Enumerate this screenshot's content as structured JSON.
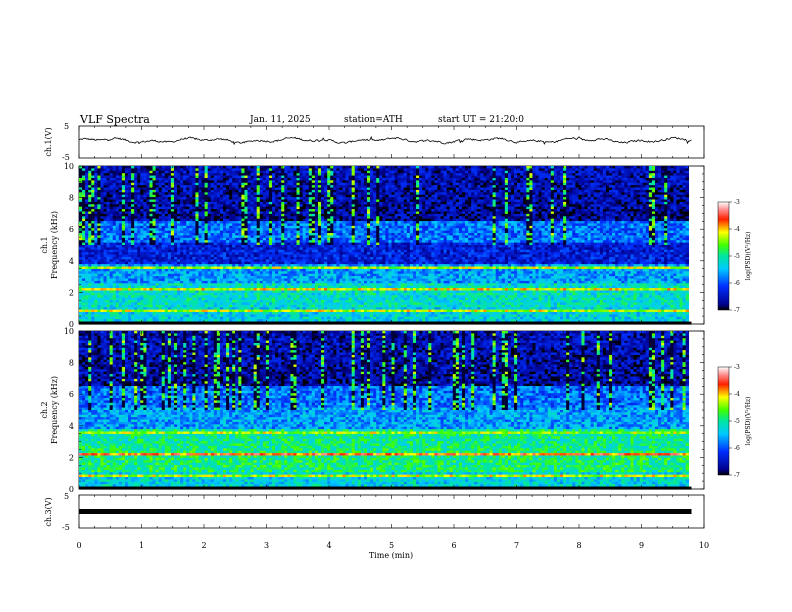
{
  "header": {
    "title": "VLF Spectra",
    "date": "Jan. 11, 2025",
    "station": "station=ATH",
    "start": "start UT = 21:20:0"
  },
  "chart_data": [
    {
      "type": "line",
      "name": "ch1-waveform",
      "ylabel": "ch.1(V)",
      "ylim": [
        -5,
        5
      ],
      "yticks": [
        "5",
        "-5"
      ],
      "xlim": [
        0,
        10
      ],
      "trace_level": 0.5
    },
    {
      "type": "heatmap",
      "name": "ch1-spectrogram",
      "ylabel_line1": "ch.1",
      "ylabel_line2": "Frequency (kHz)",
      "ylim": [
        0,
        10
      ],
      "yticks": [
        "0",
        "2",
        "4",
        "6",
        "8",
        "10"
      ],
      "xlim": [
        0,
        10
      ],
      "colorbar": {
        "label": "log(PSD)(V²/Hz)",
        "ticks": [
          "-3",
          "-4",
          "-5",
          "-6",
          "-7"
        ],
        "range": [
          -7,
          -3
        ]
      }
    },
    {
      "type": "heatmap",
      "name": "ch2-spectrogram",
      "ylabel_line1": "ch.2",
      "ylabel_line2": "Frequency (kHz)",
      "ylim": [
        0,
        10
      ],
      "yticks": [
        "0",
        "2",
        "4",
        "6",
        "8",
        "10"
      ],
      "xlim": [
        0,
        10
      ],
      "colorbar": {
        "label": "log(PSD)(V²/Hz)",
        "ticks": [
          "-3",
          "-4",
          "-5",
          "-6",
          "-7"
        ],
        "range": [
          -7,
          -3
        ]
      }
    },
    {
      "type": "line",
      "name": "ch3-waveform",
      "ylabel": "ch.3(V)",
      "ylim": [
        -5,
        5
      ],
      "yticks": [
        "5",
        "-5"
      ],
      "xlim": [
        0,
        10
      ],
      "trace_level": 0,
      "xlabel": "Time (min)",
      "xticks": [
        "0",
        "1",
        "2",
        "3",
        "4",
        "5",
        "6",
        "7",
        "8",
        "9",
        "10"
      ]
    }
  ]
}
